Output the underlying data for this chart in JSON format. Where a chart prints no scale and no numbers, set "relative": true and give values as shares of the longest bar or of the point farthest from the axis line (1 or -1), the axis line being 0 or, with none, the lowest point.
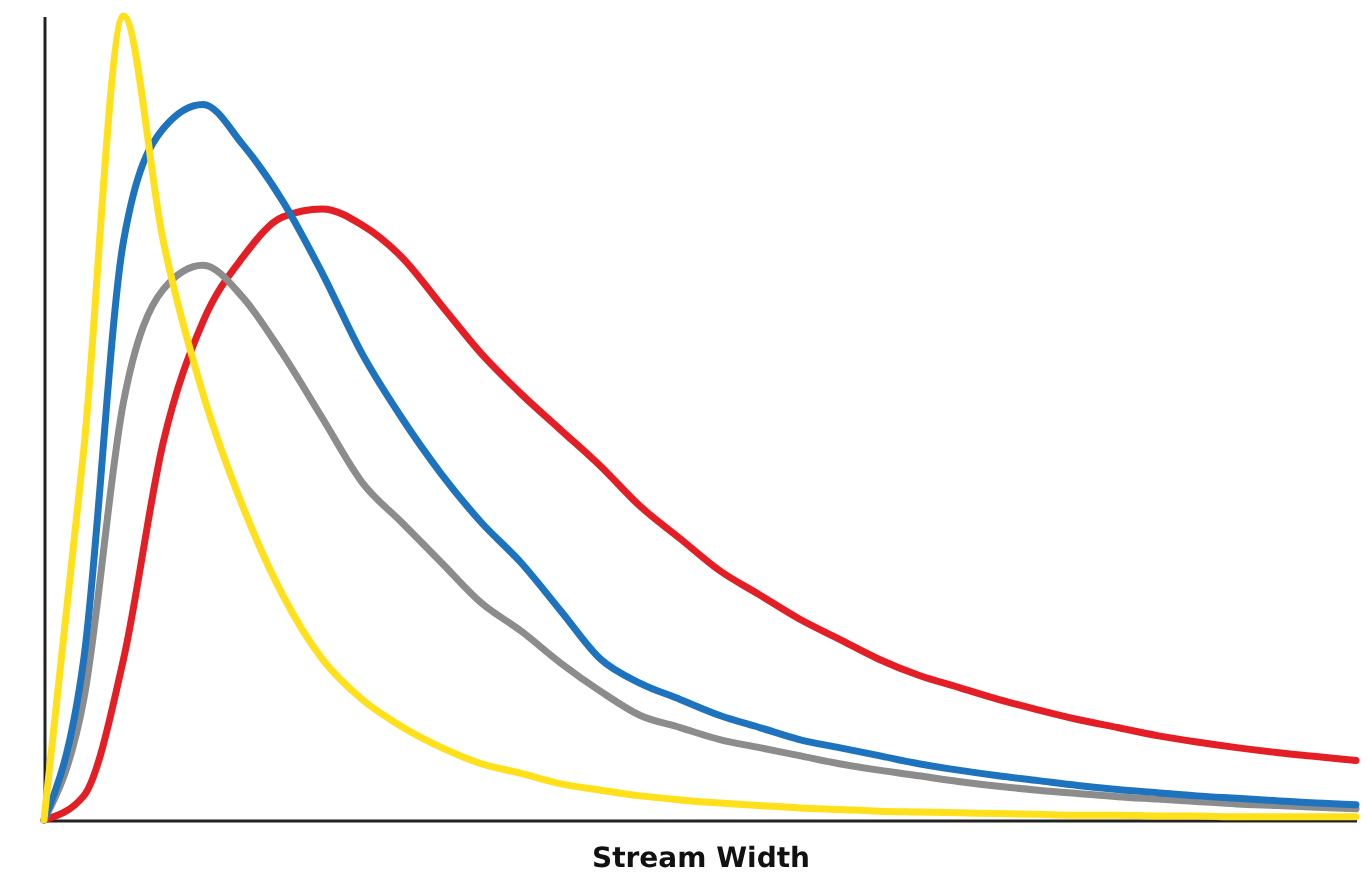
{
  "chart_data": {
    "type": "line",
    "relative": true,
    "xlabel": "Stream Width",
    "tick_labels": false,
    "grid": false,
    "marker": "none",
    "line_style": "solid",
    "categories": [
      null,
      null,
      null,
      null,
      null,
      null,
      null,
      null,
      null,
      null,
      null,
      null,
      null,
      null,
      null,
      null,
      null,
      null,
      null,
      null,
      null,
      null,
      null,
      null,
      null,
      null,
      null,
      null,
      null,
      null,
      null,
      null,
      null,
      null
    ],
    "series": [
      {
        "color": "#e31e24",
        "values": [
          0,
          0.03,
          0.2,
          0.47,
          0.62,
          0.7,
          0.75,
          0.76,
          0.74,
          0.7,
          0.64,
          0.58,
          0.53,
          0.485,
          0.44,
          0.39,
          0.35,
          0.31,
          0.28,
          0.25,
          0.225,
          0.2,
          0.18,
          0.165,
          0.15,
          0.137,
          0.125,
          0.115,
          0.105,
          0.097,
          0.09,
          0.084,
          0.079,
          0.074
        ]
      },
      {
        "color": "#8c8c8c",
        "values": [
          0,
          0.15,
          0.52,
          0.66,
          0.69,
          0.65,
          0.58,
          0.5,
          0.42,
          0.37,
          0.32,
          0.27,
          0.235,
          0.195,
          0.16,
          0.13,
          0.115,
          0.1,
          0.09,
          0.08,
          0.07,
          0.062,
          0.055,
          0.048,
          0.042,
          0.037,
          0.033,
          0.029,
          0.026,
          0.023,
          0.02,
          0.018,
          0.016,
          0.014
        ]
      },
      {
        "color": "#1e73be",
        "values": [
          0,
          0.2,
          0.72,
          0.86,
          0.89,
          0.84,
          0.77,
          0.68,
          0.58,
          0.5,
          0.43,
          0.37,
          0.32,
          0.26,
          0.2,
          0.17,
          0.15,
          0.13,
          0.115,
          0.1,
          0.09,
          0.08,
          0.07,
          0.062,
          0.055,
          0.049,
          0.043,
          0.038,
          0.034,
          0.03,
          0.027,
          0.024,
          0.021,
          0.019
        ]
      },
      {
        "color": "#ffe01b",
        "values": [
          0,
          0.46,
          1,
          0.72,
          0.53,
          0.39,
          0.28,
          0.2,
          0.15,
          0.116,
          0.09,
          0.07,
          0.058,
          0.045,
          0.037,
          0.03,
          0.025,
          0.021,
          0.018,
          0.015,
          0.013,
          0.011,
          0.01,
          0.009,
          0.008,
          0.007,
          0.006,
          0.006,
          0.005,
          0.005,
          0.004,
          0.004,
          0.004,
          0.004
        ]
      }
    ]
  }
}
